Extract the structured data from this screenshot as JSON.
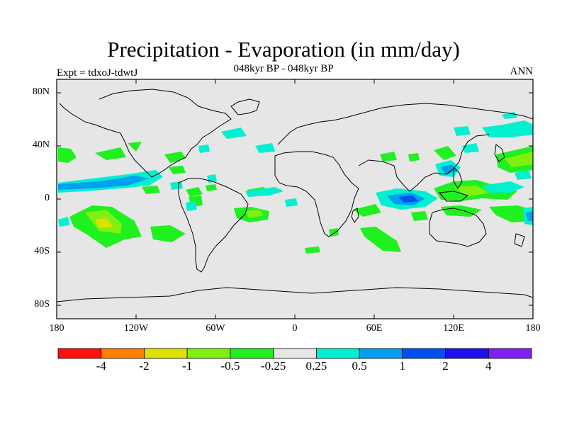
{
  "header": {
    "title": "Precipitation - Evaporation (in mm/day)",
    "subtitle": "048kyr BP - 048kyr BP",
    "experiment": "Expt = tdxoJ-tdwtJ",
    "period": "ANN"
  },
  "axes": {
    "lat_labels": [
      "80N",
      "40N",
      "0",
      "40S",
      "80S"
    ],
    "lon_labels": [
      "180",
      "120W",
      "60W",
      "0",
      "60E",
      "120E",
      "180"
    ]
  },
  "colorbar": {
    "colors": [
      "#ff1010",
      "#ff7f00",
      "#e0e000",
      "#80f010",
      "#20f020",
      "#e6e6e6",
      "#00f0d0",
      "#00a0f0",
      "#0050f0",
      "#2010f0",
      "#8020f0"
    ],
    "labels": [
      "-4",
      "-2",
      "-1",
      "-0.5",
      "-0.25",
      "0.25",
      "0.5",
      "1",
      "2",
      "4"
    ]
  },
  "map": {
    "ocean_color": "#e6e6e6",
    "coast_color": "#000000"
  }
}
